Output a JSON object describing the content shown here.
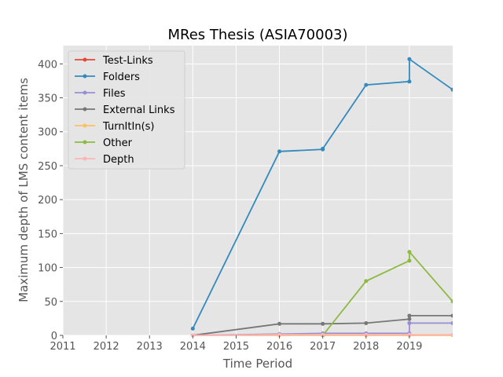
{
  "chart_data": {
    "type": "line",
    "title": "MRes Thesis (ASIA70003)",
    "xlabel": "Time Period",
    "ylabel": "Maximum depth of LMS content items",
    "xlim": [
      2011,
      2020
    ],
    "ylim": [
      0,
      427
    ],
    "xticks": [
      2011,
      2012,
      2013,
      2014,
      2015,
      2016,
      2017,
      2018,
      2019
    ],
    "yticks": [
      0,
      50,
      100,
      150,
      200,
      250,
      300,
      350,
      400
    ],
    "grid": true,
    "legend_position": "top-left",
    "series": [
      {
        "name": "Test-Links",
        "color": "#E24A33",
        "points": []
      },
      {
        "name": "Folders",
        "color": "#348ABD",
        "points": [
          [
            2014,
            10
          ],
          [
            2016,
            271
          ],
          [
            2017,
            274
          ],
          [
            2017,
            275
          ],
          [
            2018,
            369
          ],
          [
            2019,
            374
          ],
          [
            2019,
            407
          ],
          [
            2020,
            362
          ]
        ]
      },
      {
        "name": "Files",
        "color": "#988ED5",
        "points": [
          [
            2014,
            0
          ],
          [
            2016,
            2
          ],
          [
            2017,
            3
          ],
          [
            2018,
            3
          ],
          [
            2019,
            3
          ],
          [
            2019,
            18
          ],
          [
            2020,
            18
          ]
        ]
      },
      {
        "name": "External Links",
        "color": "#777777",
        "points": [
          [
            2014,
            0
          ],
          [
            2016,
            17
          ],
          [
            2017,
            17
          ],
          [
            2018,
            18
          ],
          [
            2019,
            24
          ],
          [
            2019,
            29
          ],
          [
            2020,
            29
          ]
        ]
      },
      {
        "name": "TurnItIn(s)",
        "color": "#FBC15E",
        "points": [
          [
            2014,
            0
          ],
          [
            2016,
            0
          ],
          [
            2017,
            0
          ],
          [
            2018,
            0
          ],
          [
            2019,
            0
          ],
          [
            2020,
            0
          ]
        ]
      },
      {
        "name": "Other",
        "color": "#8EBA42",
        "points": [
          [
            2017,
            0
          ],
          [
            2018,
            80
          ],
          [
            2019,
            110
          ],
          [
            2019,
            123
          ],
          [
            2020,
            50
          ]
        ]
      },
      {
        "name": "Depth",
        "color": "#FFB5B8",
        "points": [
          [
            2014,
            0
          ],
          [
            2016,
            1
          ],
          [
            2017,
            1
          ],
          [
            2018,
            1
          ],
          [
            2019,
            1
          ],
          [
            2020,
            1
          ]
        ]
      }
    ]
  }
}
